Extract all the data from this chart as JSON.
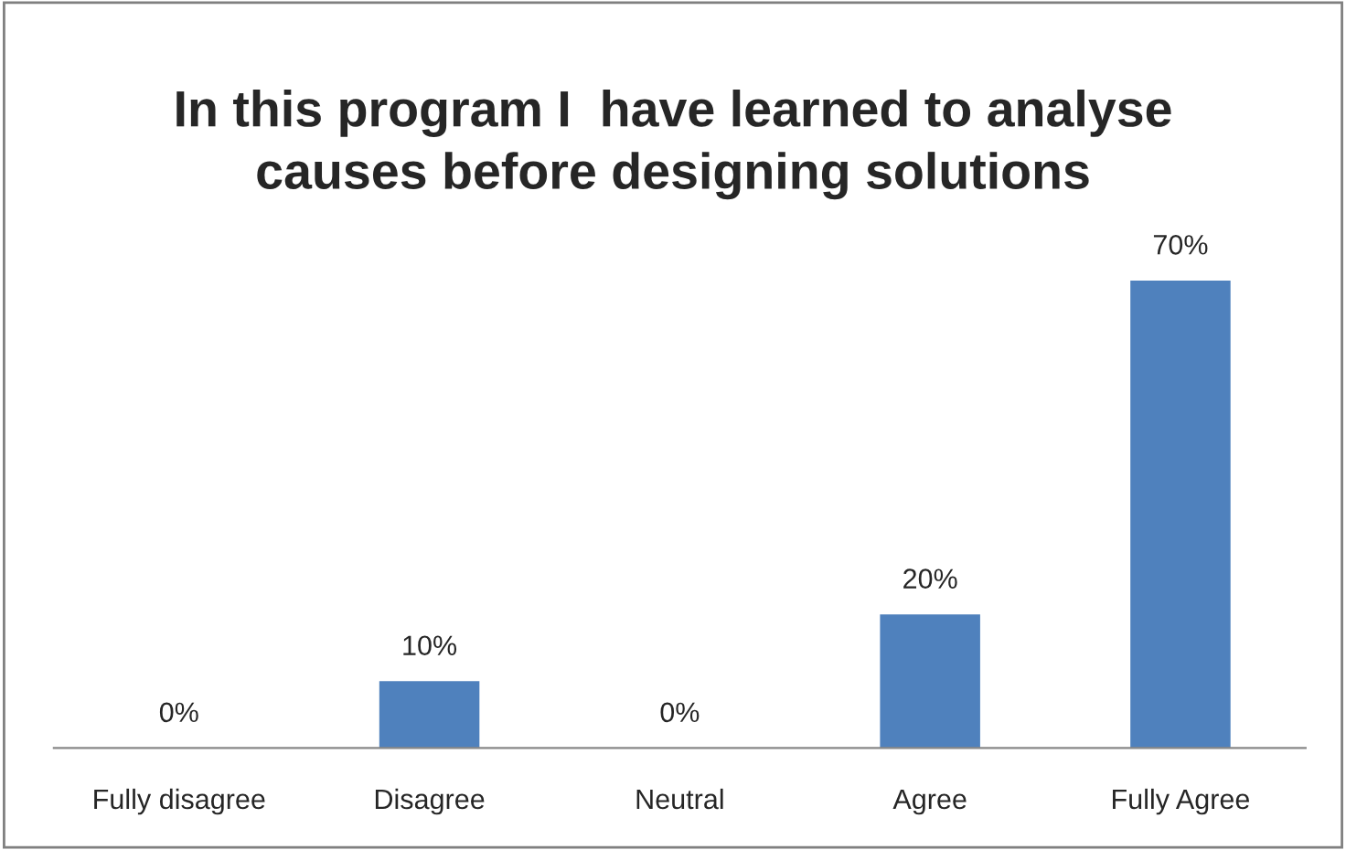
{
  "chart_data": {
    "type": "bar",
    "title": "In this program I  have learned to analyse\ncauses before designing solutions",
    "categories": [
      "Fully disagree",
      "Disagree",
      "Neutral",
      "Agree",
      "Fully Agree"
    ],
    "values": [
      0,
      10,
      0,
      20,
      70
    ],
    "value_labels": [
      "0%",
      "10%",
      "0%",
      "20%",
      "70%"
    ],
    "color": "#4f81bd",
    "grid": false,
    "legend": false
  }
}
